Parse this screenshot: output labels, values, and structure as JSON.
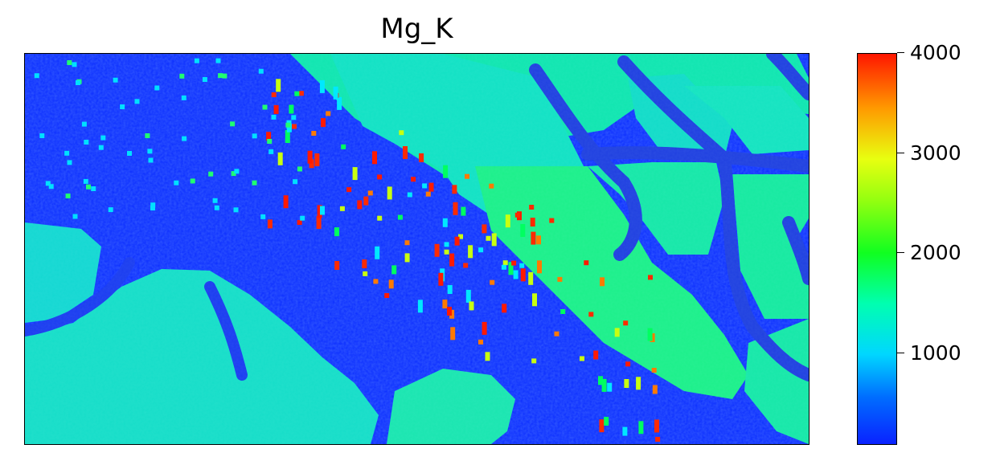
{
  "chart_data": {
    "type": "heatmap",
    "title": "Mg_K",
    "xlabel": "",
    "ylabel": "",
    "axis_ticks_visible": false,
    "colormap": "gist_rainbow_r (blue → cyan → green → yellow → red)",
    "colorbar": {
      "range": [
        100,
        4000
      ],
      "ticks": [
        1000,
        2000,
        3000,
        4000
      ],
      "tick_labels": [
        "1000",
        "2000",
        "3000",
        "4000"
      ]
    },
    "colors": {
      "low": "#0a22ff",
      "mid_low": "#00d7ff",
      "mid": "#12ff6a",
      "mid_high": "#e8ff10",
      "high": "#ff1600"
    },
    "regions": [
      {
        "name": "background matrix (low Mg)",
        "approx_value": 350
      },
      {
        "name": "upper-right grains",
        "approx_value": 1300
      },
      {
        "name": "lower-left grains",
        "approx_value": 1150
      },
      {
        "name": "left-edge grain",
        "approx_value": 1150
      },
      {
        "name": "bottom-center grain",
        "approx_value": 1350
      },
      {
        "name": "dark seams between grains",
        "approx_value": 500
      },
      {
        "name": "scattered hot spots",
        "approx_value": 4000
      }
    ]
  }
}
